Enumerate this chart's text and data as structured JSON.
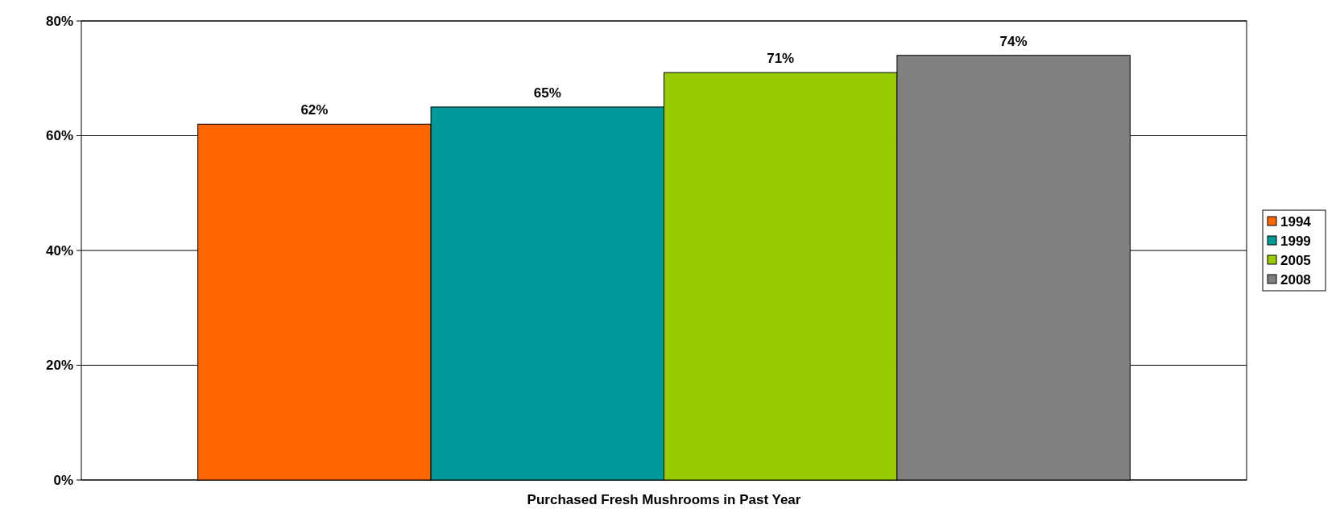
{
  "chart_data": {
    "type": "bar",
    "categories": [
      "Purchased Fresh Mushrooms in Past Year"
    ],
    "series": [
      {
        "name": "1994",
        "color": "#ff6600",
        "values": [
          62
        ]
      },
      {
        "name": "1999",
        "color": "#009999",
        "values": [
          65
        ]
      },
      {
        "name": "2005",
        "color": "#99cc00",
        "values": [
          71
        ]
      },
      {
        "name": "2008",
        "color": "#808080",
        "values": [
          74
        ]
      }
    ],
    "value_labels": [
      [
        "62%"
      ],
      [
        "65%"
      ],
      [
        "71%"
      ],
      [
        "74%"
      ]
    ],
    "ylim": [
      0,
      80
    ],
    "yticks": [
      {
        "value": 0,
        "label": "0%"
      },
      {
        "value": 20,
        "label": "20%"
      },
      {
        "value": 40,
        "label": "40%"
      },
      {
        "value": 60,
        "label": "60%"
      },
      {
        "value": 80,
        "label": "80%"
      }
    ],
    "grid": "y",
    "legend": "right"
  }
}
